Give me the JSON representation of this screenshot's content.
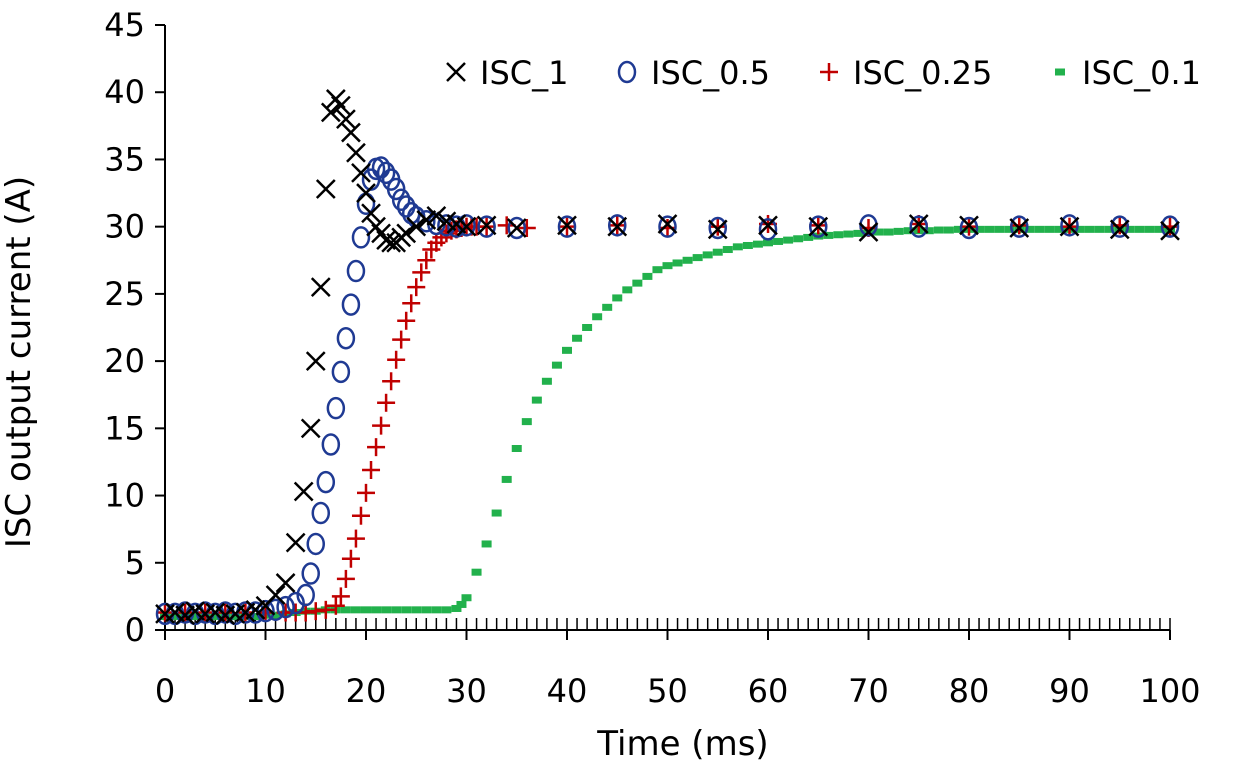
{
  "chart_data": {
    "type": "scatter",
    "title": "",
    "xlabel": "Time (ms)",
    "ylabel": "ISC output current (A)",
    "xlim": [
      0,
      100
    ],
    "ylim": [
      0,
      45
    ],
    "xticks": [
      0,
      10,
      20,
      30,
      40,
      50,
      60,
      70,
      80,
      90,
      100
    ],
    "yticks": [
      0,
      5,
      10,
      15,
      20,
      25,
      30,
      35,
      40,
      45
    ],
    "x_minor_step": 1,
    "grid": false,
    "legend_position": "top-right",
    "series": [
      {
        "name": "ISC_1",
        "marker": "x",
        "color": "#000000",
        "x": [
          0,
          1,
          2,
          3,
          4,
          5,
          6,
          7,
          8,
          9,
          10,
          11,
          12,
          13,
          13.8,
          14.5,
          15,
          15.5,
          16,
          16.5,
          17,
          17.5,
          18,
          18.5,
          19,
          19.5,
          20,
          20.5,
          21,
          21.5,
          22,
          22.5,
          23,
          23.5,
          24,
          25,
          26,
          27,
          28,
          29,
          30,
          32,
          35,
          40,
          45,
          50,
          55,
          60,
          65,
          70,
          75,
          80,
          85,
          90,
          95,
          100
        ],
        "y": [
          1.2,
          1.3,
          1.1,
          1.4,
          1.2,
          1.3,
          1.1,
          1.2,
          1.3,
          1.5,
          1.8,
          2.6,
          3.5,
          6.5,
          10.3,
          15,
          20,
          25.5,
          32.8,
          38.5,
          39.5,
          39,
          38,
          37,
          35.5,
          34,
          32.5,
          31,
          30,
          29.5,
          29,
          28.8,
          28.8,
          29.2,
          29.5,
          30,
          30.5,
          30.8,
          30.4,
          30.2,
          30,
          30.1,
          29.9,
          30.1,
          30,
          30.2,
          29.8,
          30.1,
          30,
          29.6,
          30.2,
          30.1,
          29.9,
          30,
          29.8,
          29.7
        ]
      },
      {
        "name": "ISC_0.5",
        "marker": "o",
        "color": "#1f3a93",
        "x": [
          0,
          1,
          2,
          3,
          4,
          5,
          6,
          7,
          8,
          9,
          10,
          11,
          12,
          13,
          14,
          14.5,
          15,
          15.5,
          16,
          16.5,
          17,
          17.5,
          18,
          18.5,
          19,
          19.5,
          20,
          20.5,
          21,
          21.5,
          22,
          22.5,
          23,
          23.5,
          24,
          24.5,
          25,
          26,
          27,
          28,
          29,
          30,
          32,
          35,
          40,
          45,
          50,
          55,
          60,
          65,
          70,
          75,
          80,
          85,
          90,
          95,
          100
        ],
        "y": [
          1.2,
          1.2,
          1.3,
          1.2,
          1.3,
          1.2,
          1.3,
          1.2,
          1.3,
          1.3,
          1.4,
          1.5,
          1.7,
          2,
          2.6,
          4.2,
          6.4,
          8.7,
          11,
          13.8,
          16.5,
          19.2,
          21.7,
          24.2,
          26.7,
          29.2,
          31.7,
          33.5,
          34.3,
          34.4,
          34,
          33.5,
          32.8,
          32,
          31.5,
          31,
          30.7,
          30.4,
          30.2,
          30.1,
          30,
          30.1,
          30,
          29.9,
          30,
          30.1,
          30,
          29.9,
          29.8,
          30,
          30.1,
          30,
          29.9,
          30,
          30.1,
          30,
          30
        ]
      },
      {
        "name": "ISC_0.25",
        "marker": "+",
        "color": "#c00000",
        "x": [
          0,
          2,
          4,
          6,
          8,
          10,
          12,
          13,
          14,
          15,
          16,
          17,
          17.5,
          18,
          18.5,
          19,
          19.5,
          20,
          20.5,
          21,
          21.5,
          22,
          22.5,
          23,
          23.5,
          24,
          24.5,
          25,
          25.5,
          26,
          26.5,
          27,
          27.5,
          28,
          28.5,
          29,
          29.5,
          30,
          30.5,
          31,
          32,
          34,
          36,
          40,
          45,
          50,
          55,
          60,
          65,
          70,
          75,
          80,
          85,
          90,
          95,
          100
        ],
        "y": [
          1.3,
          1.3,
          1.3,
          1.3,
          1.3,
          1.3,
          1.3,
          1.3,
          1.3,
          1.4,
          1.5,
          1.8,
          2.5,
          3.8,
          5.3,
          6.8,
          8.5,
          10.2,
          11.9,
          13.6,
          15.2,
          16.9,
          18.5,
          20.1,
          21.6,
          23,
          24.3,
          25.5,
          26.6,
          27.5,
          28.3,
          28.8,
          29.2,
          29.5,
          29.7,
          29.8,
          29.9,
          30,
          30,
          30,
          30,
          30.1,
          29.9,
          30,
          30.1,
          29.9,
          30,
          30.2,
          30.1,
          29.9,
          30.2,
          30,
          30.1,
          30,
          30.1,
          30
        ]
      },
      {
        "name": "ISC_0.1",
        "marker": "dash",
        "color": "#22b14c",
        "x": [
          0,
          1,
          2,
          3,
          4,
          5,
          6,
          7,
          8,
          9,
          10,
          11,
          12,
          13,
          14,
          15,
          16,
          17,
          18,
          19,
          20,
          21,
          22,
          23,
          24,
          25,
          26,
          27,
          28,
          29,
          29.5,
          30,
          31,
          32,
          33,
          34,
          35,
          36,
          37,
          38,
          39,
          40,
          41,
          42,
          43,
          44,
          45,
          46,
          47,
          48,
          49,
          50,
          51,
          52,
          53,
          54,
          55,
          56,
          57,
          58,
          59,
          60,
          61,
          62,
          63,
          64,
          65,
          66,
          67,
          68,
          69,
          70,
          71,
          72,
          73,
          74,
          75,
          76,
          77,
          78,
          79,
          80,
          81,
          82,
          83,
          84,
          85,
          86,
          87,
          88,
          89,
          90,
          91,
          92,
          93,
          94,
          95,
          96,
          97,
          98,
          99,
          100
        ],
        "y": [
          1,
          1,
          1,
          1,
          1,
          1,
          1,
          1,
          1,
          1,
          1.1,
          1.1,
          1.2,
          1.3,
          1.4,
          1.4,
          1.5,
          1.5,
          1.5,
          1.5,
          1.5,
          1.5,
          1.5,
          1.5,
          1.5,
          1.5,
          1.5,
          1.5,
          1.5,
          1.6,
          1.9,
          2.4,
          4.3,
          6.4,
          8.7,
          11.2,
          13.5,
          15.5,
          17.1,
          18.5,
          19.7,
          20.8,
          21.7,
          22.5,
          23.3,
          24,
          24.7,
          25.3,
          25.8,
          26.3,
          26.8,
          27.1,
          27.3,
          27.5,
          27.7,
          27.9,
          28.1,
          28.3,
          28.5,
          28.6,
          28.7,
          28.8,
          28.9,
          29,
          29.1,
          29.2,
          29.3,
          29.35,
          29.4,
          29.45,
          29.5,
          29.55,
          29.6,
          29.6,
          29.65,
          29.7,
          29.7,
          29.7,
          29.75,
          29.75,
          29.8,
          29.8,
          29.8,
          29.8,
          29.8,
          29.8,
          29.8,
          29.8,
          29.8,
          29.8,
          29.8,
          29.8,
          29.8,
          29.8,
          29.8,
          29.8,
          29.8,
          29.8,
          29.8,
          29.8,
          29.8,
          29.8
        ]
      }
    ]
  }
}
